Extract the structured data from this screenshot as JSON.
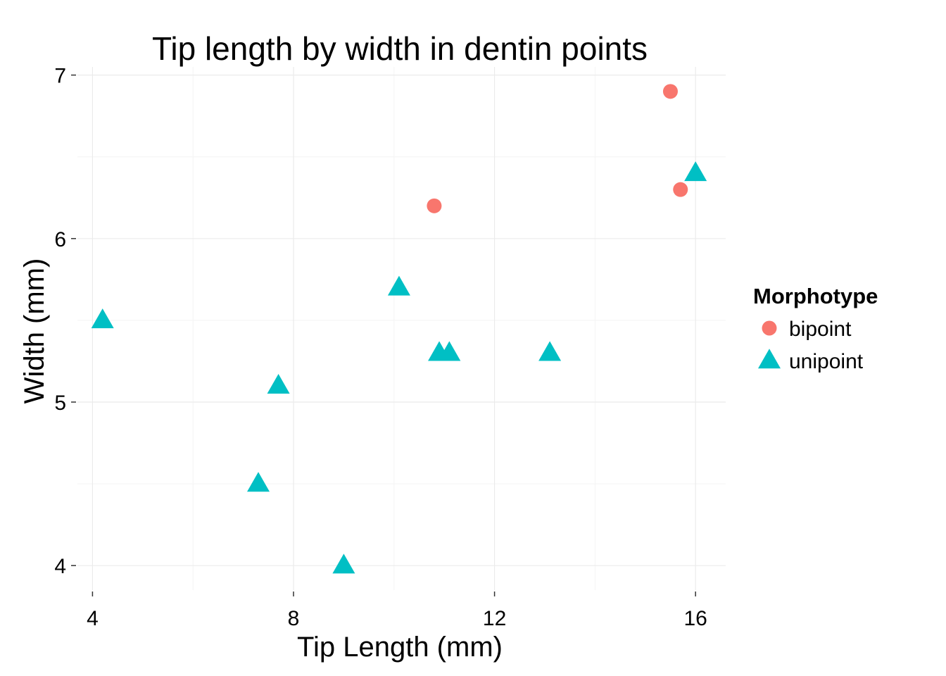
{
  "chart_data": {
    "type": "scatter",
    "title": "Tip length by width in dentin points",
    "xlabel": "Tip Length (mm)",
    "ylabel": "Width (mm)",
    "xlim": [
      3.7,
      16.6
    ],
    "ylim": [
      3.85,
      7.05
    ],
    "x_ticks": [
      4,
      8,
      12,
      16
    ],
    "y_ticks": [
      4,
      5,
      6,
      7
    ],
    "x_tick_labels": [
      "4",
      "8",
      "12",
      "16"
    ],
    "y_tick_labels": [
      "4",
      "5",
      "6",
      "7"
    ],
    "grid": true,
    "legend": {
      "title": "Morphotype",
      "position": "right"
    },
    "series": [
      {
        "name": "bipoint",
        "shape": "circle",
        "color": "#F8766D",
        "points": [
          {
            "x": 10.8,
            "y": 6.2
          },
          {
            "x": 15.5,
            "y": 6.9
          },
          {
            "x": 15.7,
            "y": 6.3
          }
        ]
      },
      {
        "name": "unipoint",
        "shape": "triangle",
        "color": "#00BFC4",
        "points": [
          {
            "x": 4.2,
            "y": 5.5
          },
          {
            "x": 7.3,
            "y": 4.5
          },
          {
            "x": 7.7,
            "y": 5.1
          },
          {
            "x": 9.0,
            "y": 4.0
          },
          {
            "x": 10.1,
            "y": 5.7
          },
          {
            "x": 10.9,
            "y": 5.3
          },
          {
            "x": 11.1,
            "y": 5.3
          },
          {
            "x": 13.1,
            "y": 5.3
          },
          {
            "x": 16.0,
            "y": 6.4
          }
        ]
      }
    ]
  }
}
